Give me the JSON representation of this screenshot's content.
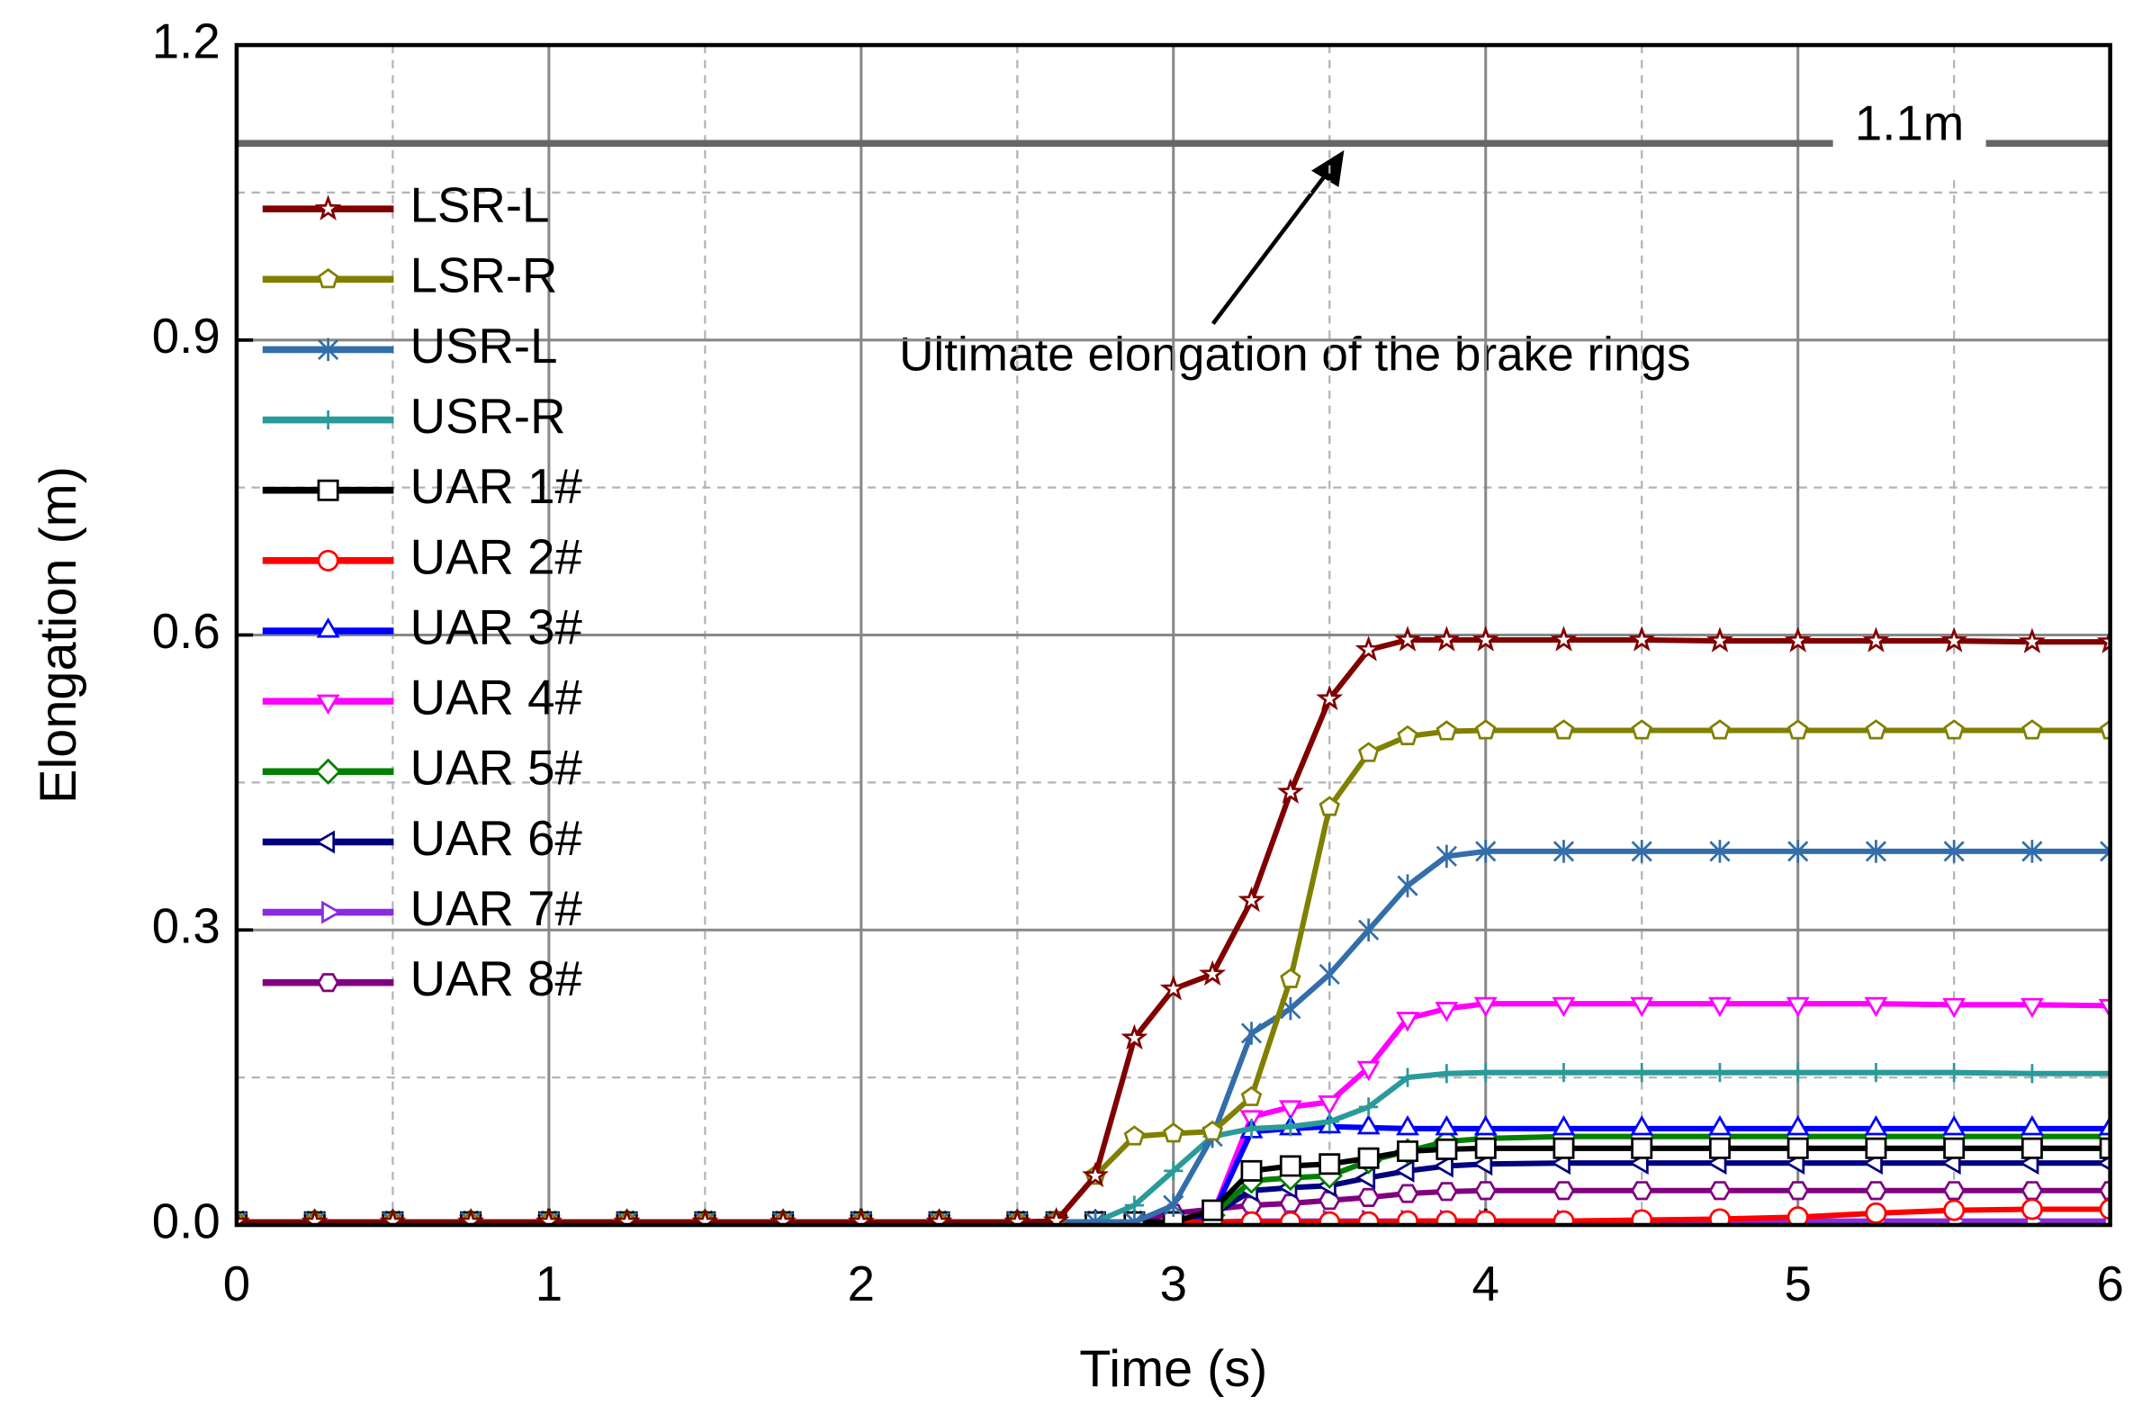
{
  "chart_data": {
    "type": "line",
    "x_label": "Time (s)",
    "y_label": "Elongation (m)",
    "xlim": [
      0,
      6
    ],
    "ylim": [
      0,
      1.2
    ],
    "xticks": [
      0,
      1,
      2,
      3,
      4,
      5,
      6
    ],
    "yticks": [
      {
        "value": 0,
        "label": "0.0"
      },
      {
        "value": 0.3,
        "label": "0.3"
      },
      {
        "value": 0.6,
        "label": "0.6"
      },
      {
        "value": 0.9,
        "label": "0.9"
      },
      {
        "value": 1.2,
        "label": "1.2"
      }
    ],
    "grid": true,
    "legend": "upper left",
    "reference_line": {
      "value": 1.1,
      "label": "1.1m",
      "color": "#666666"
    },
    "annotation": "Ultimate elongation of the brake rings",
    "x": [
      0,
      0.25,
      0.5,
      0.75,
      1,
      1.25,
      1.5,
      1.75,
      2,
      2.25,
      2.5,
      2.625,
      2.75,
      2.875,
      3,
      3.125,
      3.25,
      3.375,
      3.5,
      3.625,
      3.75,
      3.875,
      4,
      4.25,
      4.5,
      4.75,
      5,
      5.25,
      5.5,
      5.75,
      6
    ],
    "series": [
      {
        "name": "LSR-L",
        "color": "#800000",
        "marker": "star",
        "values": [
          0.003,
          0.003,
          0.003,
          0.003,
          0.003,
          0.003,
          0.003,
          0.003,
          0.003,
          0.003,
          0.003,
          0.004,
          0.05,
          0.19,
          0.24,
          0.255,
          0.33,
          0.44,
          0.535,
          0.585,
          0.595,
          0.595,
          0.595,
          0.595,
          0.595,
          0.594,
          0.594,
          0.594,
          0.594,
          0.593,
          0.593
        ]
      },
      {
        "name": "LSR-R",
        "color": "#808000",
        "marker": "pentagon",
        "values": [
          0.003,
          0.003,
          0.003,
          0.003,
          0.003,
          0.003,
          0.003,
          0.003,
          0.003,
          0.003,
          0.003,
          0.004,
          0.05,
          0.09,
          0.093,
          0.095,
          0.13,
          0.25,
          0.425,
          0.48,
          0.497,
          0.502,
          0.503,
          0.503,
          0.503,
          0.503,
          0.503,
          0.503,
          0.503,
          0.503,
          0.503
        ]
      },
      {
        "name": "USR-L",
        "color": "#336EAB",
        "marker": "asterisk",
        "values": [
          0.003,
          0.003,
          0.003,
          0.003,
          0.003,
          0.003,
          0.003,
          0.003,
          0.003,
          0.003,
          0.003,
          0.003,
          0.003,
          0.003,
          0.02,
          0.09,
          0.195,
          0.22,
          0.255,
          0.3,
          0.345,
          0.375,
          0.38,
          0.38,
          0.38,
          0.38,
          0.38,
          0.38,
          0.38,
          0.38,
          0.38
        ]
      },
      {
        "name": "USR-R",
        "color": "#2A9A9A",
        "marker": "plus",
        "values": [
          0.003,
          0.003,
          0.003,
          0.003,
          0.003,
          0.003,
          0.003,
          0.003,
          0.003,
          0.003,
          0.003,
          0.003,
          0.003,
          0.02,
          0.055,
          0.09,
          0.098,
          0.1,
          0.105,
          0.12,
          0.15,
          0.154,
          0.155,
          0.155,
          0.155,
          0.155,
          0.155,
          0.155,
          0.155,
          0.154,
          0.154
        ]
      },
      {
        "name": "UAR 1#",
        "color": "#000000",
        "marker": "square",
        "values": [
          0.003,
          0.003,
          0.003,
          0.003,
          0.003,
          0.003,
          0.003,
          0.003,
          0.003,
          0.003,
          0.003,
          0.003,
          0.003,
          0.003,
          0.003,
          0.015,
          0.055,
          0.06,
          0.062,
          0.068,
          0.075,
          0.077,
          0.078,
          0.078,
          0.078,
          0.078,
          0.078,
          0.078,
          0.078,
          0.078,
          0.078
        ]
      },
      {
        "name": "UAR 2#",
        "color": "#FF0000",
        "marker": "circle",
        "values": [
          0.003,
          0.003,
          0.003,
          0.003,
          0.003,
          0.003,
          0.003,
          0.003,
          0.003,
          0.003,
          0.003,
          0.003,
          0.003,
          0.003,
          0.003,
          0.003,
          0.003,
          0.003,
          0.003,
          0.003,
          0.004,
          0.004,
          0.004,
          0.004,
          0.005,
          0.006,
          0.008,
          0.012,
          0.015,
          0.016,
          0.016
        ]
      },
      {
        "name": "UAR 3#",
        "color": "#0000FF",
        "marker": "triangle-up",
        "values": [
          0.003,
          0.003,
          0.003,
          0.003,
          0.003,
          0.003,
          0.003,
          0.003,
          0.003,
          0.003,
          0.003,
          0.003,
          0.003,
          0.003,
          0.003,
          0.01,
          0.095,
          0.098,
          0.1,
          0.099,
          0.098,
          0.098,
          0.098,
          0.098,
          0.098,
          0.098,
          0.098,
          0.098,
          0.098,
          0.098,
          0.098
        ]
      },
      {
        "name": "UAR 4#",
        "color": "#FF00FF",
        "marker": "triangle-down",
        "values": [
          0.003,
          0.003,
          0.003,
          0.003,
          0.003,
          0.003,
          0.003,
          0.003,
          0.003,
          0.003,
          0.003,
          0.003,
          0.003,
          0.003,
          0.003,
          0.01,
          0.11,
          0.12,
          0.125,
          0.16,
          0.21,
          0.22,
          0.225,
          0.225,
          0.225,
          0.225,
          0.225,
          0.225,
          0.224,
          0.224,
          0.223
        ]
      },
      {
        "name": "UAR 5#",
        "color": "#008000",
        "marker": "diamond",
        "values": [
          0.003,
          0.003,
          0.003,
          0.003,
          0.003,
          0.003,
          0.003,
          0.003,
          0.003,
          0.003,
          0.003,
          0.003,
          0.003,
          0.003,
          0.003,
          0.01,
          0.045,
          0.048,
          0.05,
          0.065,
          0.075,
          0.085,
          0.088,
          0.09,
          0.09,
          0.09,
          0.09,
          0.09,
          0.09,
          0.09,
          0.09
        ]
      },
      {
        "name": "UAR 6#",
        "color": "#000080",
        "marker": "triangle-left",
        "values": [
          0.003,
          0.003,
          0.003,
          0.003,
          0.003,
          0.003,
          0.003,
          0.003,
          0.003,
          0.003,
          0.003,
          0.003,
          0.003,
          0.003,
          0.003,
          0.01,
          0.035,
          0.038,
          0.04,
          0.048,
          0.055,
          0.06,
          0.062,
          0.063,
          0.063,
          0.063,
          0.063,
          0.063,
          0.063,
          0.063,
          0.063
        ]
      },
      {
        "name": "UAR 7#",
        "color": "#8A2BE2",
        "marker": "triangle-right",
        "values": [
          0.003,
          0.003,
          0.003,
          0.003,
          0.003,
          0.003,
          0.003,
          0.003,
          0.003,
          0.003,
          0.003,
          0.003,
          0.003,
          0.003,
          0.003,
          0.003,
          0.004,
          0.004,
          0.004,
          0.004,
          0.004,
          0.004,
          0.004,
          0.004,
          0.004,
          0.004,
          0.004,
          0.004,
          0.004,
          0.004,
          0.004
        ]
      },
      {
        "name": "UAR 8#",
        "color": "#800080",
        "marker": "hexagon",
        "values": [
          0.003,
          0.003,
          0.003,
          0.003,
          0.003,
          0.003,
          0.003,
          0.003,
          0.003,
          0.003,
          0.003,
          0.003,
          0.003,
          0.003,
          0.012,
          0.016,
          0.02,
          0.022,
          0.025,
          0.028,
          0.032,
          0.034,
          0.035,
          0.035,
          0.035,
          0.035,
          0.035,
          0.035,
          0.035,
          0.035,
          0.035
        ]
      }
    ]
  }
}
